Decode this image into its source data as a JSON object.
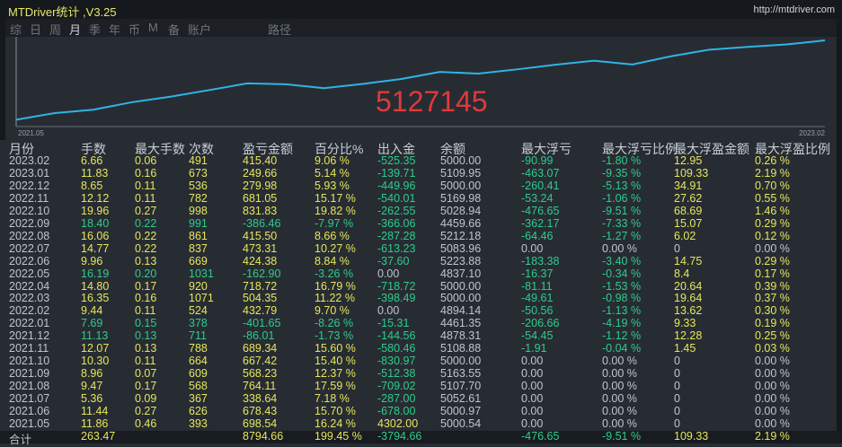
{
  "window": {
    "title": "MTDriver统计 ,V3.25",
    "url": "http://mtdriver.com"
  },
  "tabs": [
    {
      "label": "综",
      "active": false
    },
    {
      "label": "日",
      "active": false
    },
    {
      "label": "周",
      "active": false
    },
    {
      "label": "月",
      "active": true
    },
    {
      "label": "季",
      "active": false
    },
    {
      "label": "年",
      "active": false
    },
    {
      "label": "币",
      "active": false
    },
    {
      "label": "M",
      "active": false
    },
    {
      "label": "备",
      "active": false
    },
    {
      "label": "账户",
      "active": false
    },
    {
      "label": "路径",
      "active": false
    }
  ],
  "chart_data": {
    "type": "line",
    "x_start_label": "2021.05",
    "x_end_label": "2023.02",
    "overlay_number": "5127145",
    "line_color": "#2fb4e6",
    "grid": false
  },
  "colors": {
    "positive": "#e6e65a",
    "negative": "#2ecc8a",
    "neutral": "#c0c5ce",
    "line": "#2fb4e6",
    "overlay": "#e03a3a"
  },
  "table": {
    "headers": [
      "月份",
      "手数",
      "最大手数",
      "次数",
      "盈亏金额",
      "百分比%",
      "出入金",
      "余额",
      "最大浮亏",
      "最大浮亏比例",
      "最大浮盈金额",
      "最大浮盈比例"
    ],
    "rows": [
      [
        "2023.02",
        "6.66",
        "0.06",
        "491",
        "415.40",
        "9.06 %",
        "-525.35",
        "5000.00",
        "-90.99",
        "-1.80 %",
        "12.95",
        "0.26 %"
      ],
      [
        "2023.01",
        "11.83",
        "0.16",
        "673",
        "249.66",
        "5.14 %",
        "-139.71",
        "5109.95",
        "-463.07",
        "-9.35 %",
        "109.33",
        "2.19 %"
      ],
      [
        "2022.12",
        "8.65",
        "0.11",
        "536",
        "279.98",
        "5.93 %",
        "-449.96",
        "5000.00",
        "-260.41",
        "-5.13 %",
        "34.91",
        "0.70 %"
      ],
      [
        "2022.11",
        "12.12",
        "0.11",
        "782",
        "681.05",
        "15.17 %",
        "-540.01",
        "5169.98",
        "-53.24",
        "-1.06 %",
        "27.62",
        "0.55 %"
      ],
      [
        "2022.10",
        "19.96",
        "0.27",
        "998",
        "831.83",
        "19.82 %",
        "-262.55",
        "5028.94",
        "-476.65",
        "-9.51 %",
        "68.69",
        "1.46 %"
      ],
      [
        "2022.09",
        "18.40",
        "0.22",
        "991",
        "-386.46",
        "-7.97 %",
        "-366.06",
        "4459.66",
        "-362.17",
        "-7.33 %",
        "15.07",
        "0.29 %"
      ],
      [
        "2022.08",
        "16.06",
        "0.22",
        "861",
        "415.50",
        "8.66 %",
        "-287.28",
        "5212.18",
        "-64.46",
        "-1.27 %",
        "6.02",
        "0.12 %"
      ],
      [
        "2022.07",
        "14.77",
        "0.22",
        "837",
        "473.31",
        "10.27 %",
        "-613.23",
        "5083.96",
        "0.00",
        "0.00 %",
        "0",
        "0.00 %"
      ],
      [
        "2022.06",
        "9.96",
        "0.13",
        "669",
        "424.38",
        "8.84 %",
        "-37.60",
        "5223.88",
        "-183.38",
        "-3.40 %",
        "14.75",
        "0.29 %"
      ],
      [
        "2022.05",
        "16.19",
        "0.20",
        "1031",
        "-162.90",
        "-3.26 %",
        "0.00",
        "4837.10",
        "-16.37",
        "-0.34 %",
        "8.4",
        "0.17 %"
      ],
      [
        "2022.04",
        "14.80",
        "0.17",
        "920",
        "718.72",
        "16.79 %",
        "-718.72",
        "5000.00",
        "-81.11",
        "-1.53 %",
        "20.64",
        "0.39 %"
      ],
      [
        "2022.03",
        "16.35",
        "0.16",
        "1071",
        "504.35",
        "11.22 %",
        "-398.49",
        "5000.00",
        "-49.61",
        "-0.98 %",
        "19.64",
        "0.37 %"
      ],
      [
        "2022.02",
        "9.44",
        "0.11",
        "524",
        "432.79",
        "9.70 %",
        "0.00",
        "4894.14",
        "-50.56",
        "-1.13 %",
        "13.62",
        "0.30 %"
      ],
      [
        "2022.01",
        "7.69",
        "0.15",
        "378",
        "-401.65",
        "-8.26 %",
        "-15.31",
        "4461.35",
        "-206.66",
        "-4.19 %",
        "9.33",
        "0.19 %"
      ],
      [
        "2021.12",
        "11.13",
        "0.13",
        "711",
        "-86.01",
        "-1.73 %",
        "-144.56",
        "4878.31",
        "-54.45",
        "-1.12 %",
        "12.28",
        "0.25 %"
      ],
      [
        "2021.11",
        "12.07",
        "0.13",
        "788",
        "689.34",
        "15.60 %",
        "-580.46",
        "5108.88",
        "-1.91",
        "-0.04 %",
        "1.45",
        "0.03 %"
      ],
      [
        "2021.10",
        "10.30",
        "0.11",
        "664",
        "667.42",
        "15.40 %",
        "-830.97",
        "5000.00",
        "0.00",
        "0.00 %",
        "0",
        "0.00 %"
      ],
      [
        "2021.09",
        "8.96",
        "0.07",
        "609",
        "568.23",
        "12.37 %",
        "-512.38",
        "5163.55",
        "0.00",
        "0.00 %",
        "0",
        "0.00 %"
      ],
      [
        "2021.08",
        "9.47",
        "0.17",
        "568",
        "764.11",
        "17.59 %",
        "-709.02",
        "5107.70",
        "0.00",
        "0.00 %",
        "0",
        "0.00 %"
      ],
      [
        "2021.07",
        "5.36",
        "0.09",
        "367",
        "338.64",
        "7.18 %",
        "-287.00",
        "5052.61",
        "0.00",
        "0.00 %",
        "0",
        "0.00 %"
      ],
      [
        "2021.06",
        "11.44",
        "0.27",
        "626",
        "678.43",
        "15.70 %",
        "-678.00",
        "5000.97",
        "0.00",
        "0.00 %",
        "0",
        "0.00 %"
      ],
      [
        "2021.05",
        "11.86",
        "0.46",
        "393",
        "698.54",
        "16.24 %",
        "4302.00",
        "5000.54",
        "0.00",
        "0.00 %",
        "0",
        "0.00 %"
      ]
    ],
    "total": [
      "合计",
      "263.47",
      "",
      "",
      "8794.66",
      "199.45 %",
      "-3794.66",
      "",
      "-476.65",
      "-9.51 %",
      "109.33",
      "2.19 %"
    ]
  }
}
